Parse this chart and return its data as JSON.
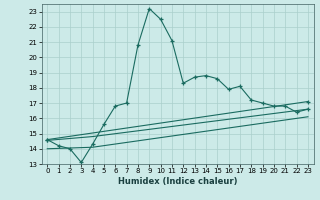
{
  "xlabel": "Humidex (Indice chaleur)",
  "bg_color": "#cceae8",
  "grid_color": "#aacfcc",
  "line_color": "#1a6b60",
  "xlim": [
    -0.5,
    23.5
  ],
  "ylim": [
    13,
    23.5
  ],
  "xticks": [
    0,
    1,
    2,
    3,
    4,
    5,
    6,
    7,
    8,
    9,
    10,
    11,
    12,
    13,
    14,
    15,
    16,
    17,
    18,
    19,
    20,
    21,
    22,
    23
  ],
  "yticks": [
    13,
    14,
    15,
    16,
    17,
    18,
    19,
    20,
    21,
    22,
    23
  ],
  "line1_x": [
    0,
    1,
    2,
    3,
    4,
    5,
    6,
    7,
    8,
    9,
    10,
    11,
    12,
    13,
    14,
    15,
    16,
    17,
    18,
    19,
    20,
    21,
    22,
    23
  ],
  "line1_y": [
    14.6,
    14.2,
    14.0,
    13.1,
    14.3,
    15.6,
    16.8,
    17.0,
    20.8,
    23.2,
    22.5,
    21.1,
    18.3,
    18.7,
    18.8,
    18.6,
    17.9,
    18.1,
    17.2,
    17.0,
    16.8,
    16.8,
    16.4,
    16.6
  ],
  "line2_x": [
    0,
    23
  ],
  "line2_y": [
    14.6,
    17.1
  ],
  "line3_x": [
    0,
    4,
    23
  ],
  "line3_y": [
    14.55,
    14.8,
    16.6
  ],
  "line4_x": [
    0,
    4,
    23
  ],
  "line4_y": [
    14.0,
    14.1,
    16.1
  ]
}
